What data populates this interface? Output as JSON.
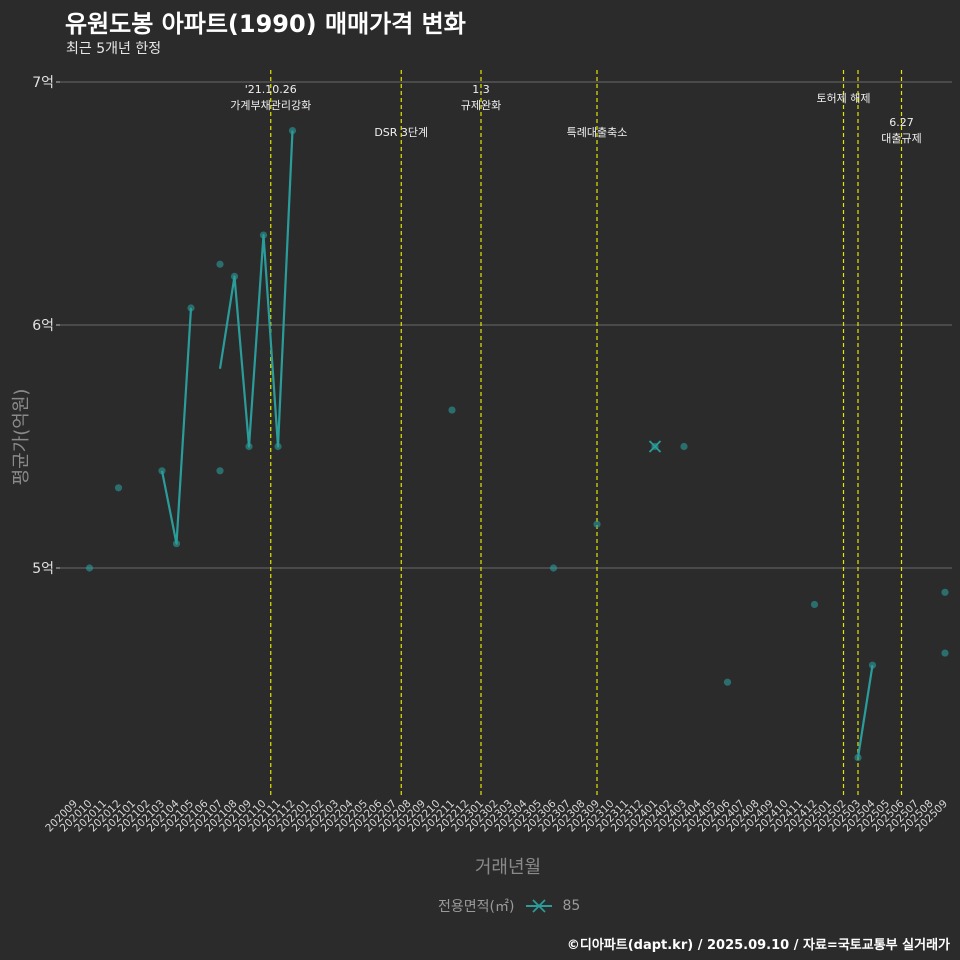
{
  "title": "유원도봉 아파트(1990) 매매가격 변화",
  "subtitle": "최근 5개년 한정",
  "footer": "©디아파트(dapt.kr) / 2025.09.10 / 자료=국토교통부 실거래가",
  "colors": {
    "background": "#2b2b2c",
    "grid": "#6a6a6a",
    "series": "#2a9d9b",
    "event_line": "#e5e500"
  },
  "chart_data": {
    "type": "line",
    "title": "유원도봉 아파트(1990) 매매가격 변화",
    "subtitle": "최근 5개년 한정",
    "xlabel": "거래년월",
    "ylabel": "평균가(억원)",
    "yticks": [
      {
        "value": 5,
        "label": "5억"
      },
      {
        "value": 6,
        "label": "6억"
      },
      {
        "value": 7,
        "label": "7억"
      }
    ],
    "ylim": [
      4.1,
      7.05
    ],
    "x": [
      "202009",
      "202010",
      "202011",
      "202012",
      "202101",
      "202102",
      "202103",
      "202104",
      "202105",
      "202106",
      "202107",
      "202108",
      "202109",
      "202110",
      "202111",
      "202112",
      "202201",
      "202202",
      "202203",
      "202204",
      "202205",
      "202206",
      "202207",
      "202208",
      "202209",
      "202210",
      "202211",
      "202212",
      "202301",
      "202302",
      "202303",
      "202304",
      "202305",
      "202306",
      "202307",
      "202308",
      "202309",
      "202310",
      "202311",
      "202312",
      "202401",
      "202402",
      "202403",
      "202404",
      "202405",
      "202406",
      "202407",
      "202408",
      "202409",
      "202410",
      "202411",
      "202412",
      "202501",
      "202502",
      "202503",
      "202504",
      "202505",
      "202506",
      "202507",
      "202508",
      "202509"
    ],
    "x_tick_labels": [
      "202009",
      "202010",
      "202011",
      "202012",
      "202101",
      "202102",
      "202103",
      "202104",
      "202105",
      "202106",
      "202107",
      "202108",
      "202109",
      "202110",
      "202111",
      "202112",
      "202201",
      "202202",
      "202203",
      "202204",
      "202205",
      "202206",
      "202207",
      "202208",
      "202209",
      "202210",
      "202211",
      "202212",
      "202301",
      "202302",
      "202303",
      "202304",
      "202305",
      "202306",
      "202307",
      "202308",
      "202309",
      "202310",
      "202311",
      "202312",
      "202401",
      "202402",
      "202403",
      "202404",
      "202405",
      "202406",
      "202407",
      "202408",
      "202409",
      "202410",
      "202411",
      "202412",
      "202501",
      "202502",
      "202503",
      "202504",
      "202505",
      "202506",
      "202507",
      "202508",
      "202509"
    ],
    "legend": {
      "title": "전용면적(㎡)",
      "entries": [
        "85"
      ],
      "position": "bottom"
    },
    "grid": true,
    "series": [
      {
        "name": "85",
        "line": [
          {
            "x": "202103",
            "y": 5.4
          },
          {
            "x": "202104",
            "y": 5.1
          },
          {
            "x": "202105",
            "y": 6.07
          },
          {
            "x": "202106",
            "y": null
          },
          {
            "x": "202107",
            "y": 5.82
          },
          {
            "x": "202108",
            "y": 6.2
          },
          {
            "x": "202109",
            "y": 5.5
          },
          {
            "x": "202110",
            "y": 6.37
          },
          {
            "x": "202111",
            "y": 5.5
          },
          {
            "x": "202112",
            "y": 6.8
          },
          {
            "x": "202112",
            "y": null
          },
          {
            "x": "202503",
            "y": 4.22
          },
          {
            "x": "202504",
            "y": 4.6
          }
        ],
        "points": [
          {
            "x": "202010",
            "y": 5.0
          },
          {
            "x": "202012",
            "y": 5.33
          },
          {
            "x": "202103",
            "y": 5.4
          },
          {
            "x": "202104",
            "y": 5.1
          },
          {
            "x": "202105",
            "y": 6.07
          },
          {
            "x": "202107",
            "y": 6.25
          },
          {
            "x": "202107",
            "y": 5.4
          },
          {
            "x": "202108",
            "y": 6.2
          },
          {
            "x": "202109",
            "y": 5.5
          },
          {
            "x": "202110",
            "y": 6.37
          },
          {
            "x": "202111",
            "y": 5.5
          },
          {
            "x": "202112",
            "y": 6.8
          },
          {
            "x": "202211",
            "y": 5.65
          },
          {
            "x": "202306",
            "y": 5.0
          },
          {
            "x": "202309",
            "y": 5.18
          },
          {
            "x": "202401",
            "y": 5.5
          },
          {
            "x": "202403",
            "y": 5.5
          },
          {
            "x": "202406",
            "y": 4.53
          },
          {
            "x": "202412",
            "y": 4.85
          },
          {
            "x": "202503",
            "y": 4.22
          },
          {
            "x": "202504",
            "y": 4.6
          },
          {
            "x": "202509",
            "y": 4.9
          },
          {
            "x": "202509",
            "y": 4.65
          }
        ],
        "cross_markers": [
          {
            "x": "202401",
            "y": 5.5
          }
        ]
      }
    ],
    "events": [
      {
        "x": "202110.5",
        "lines": [
          "'21.10.26",
          "가계부채관리강화"
        ],
        "row": "top"
      },
      {
        "x": "202207.5",
        "lines": [
          "DSR 3단계"
        ],
        "row": "low"
      },
      {
        "x": "202301",
        "lines": [
          "1.3",
          "규제완화"
        ],
        "row": "top"
      },
      {
        "x": "202309",
        "lines": [
          "특례대출축소"
        ],
        "row": "low"
      },
      {
        "x": "202502",
        "lines": [
          "토허제 해제"
        ],
        "row": "mid"
      },
      {
        "x": "202503",
        "lines": [],
        "row": "mid"
      },
      {
        "x": "202506",
        "lines": [
          "6.27",
          "대출규제"
        ],
        "row": "low"
      }
    ]
  }
}
